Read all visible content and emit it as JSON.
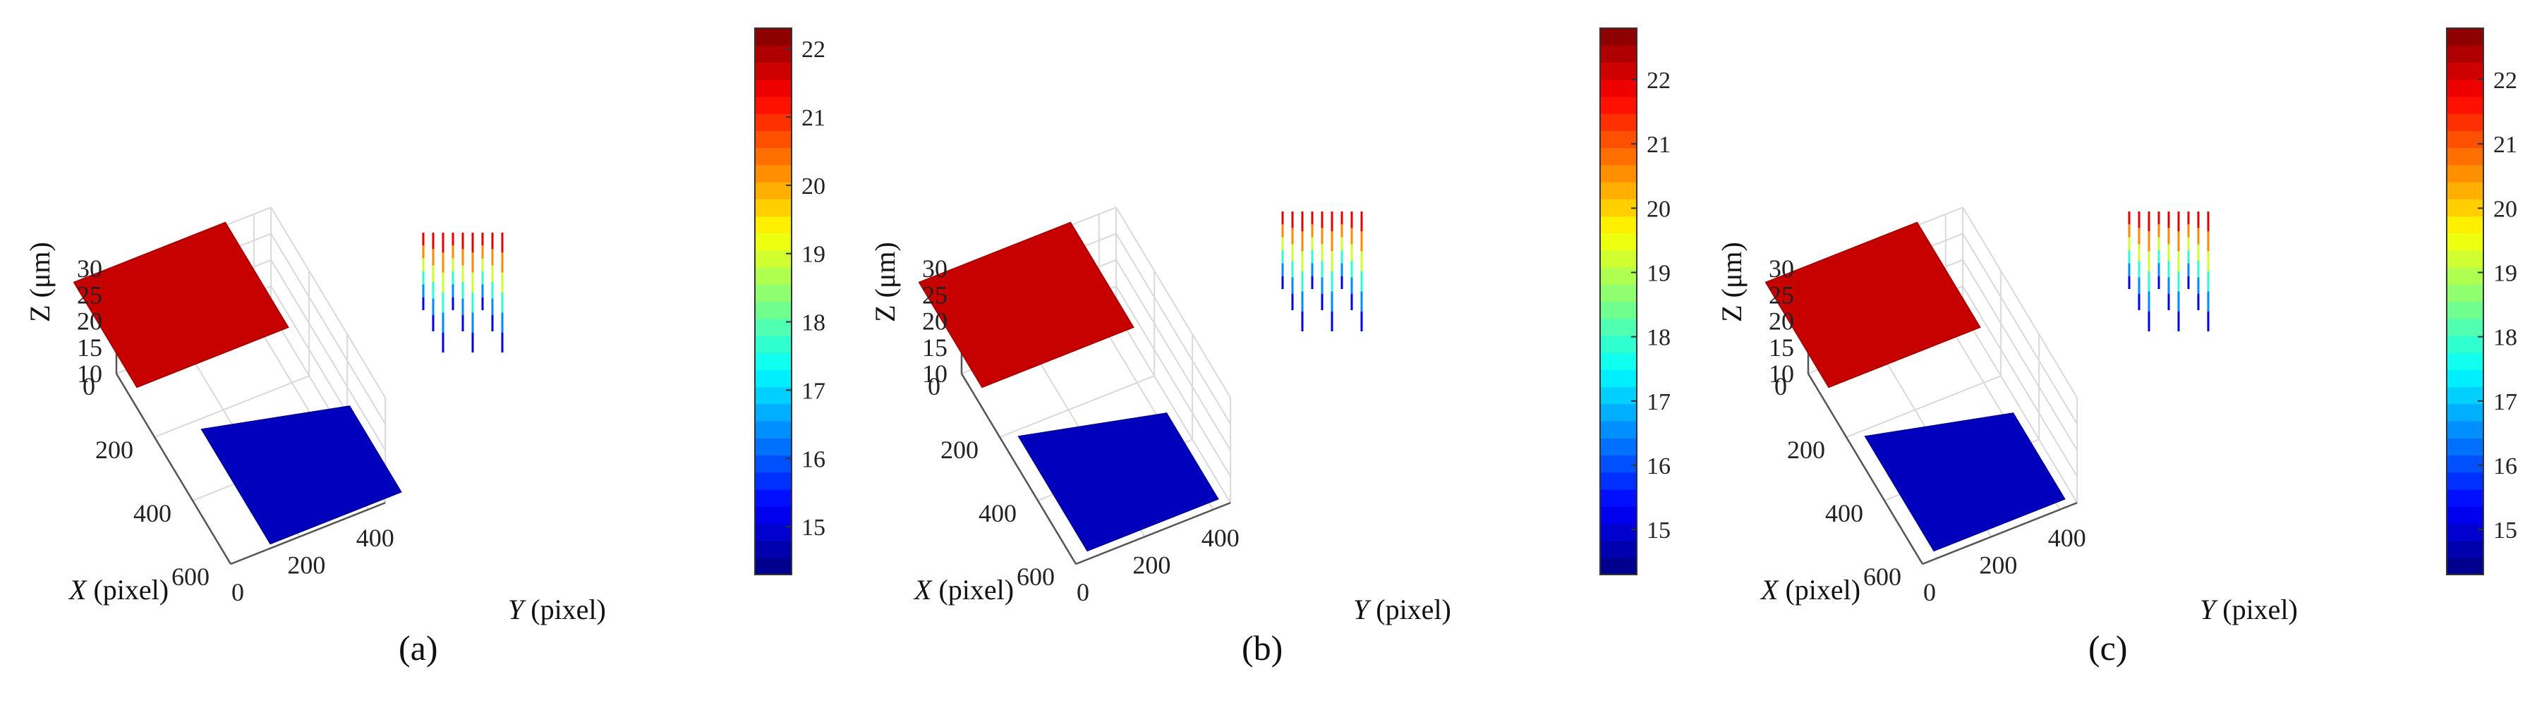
{
  "figure": {
    "panel_count": 3
  },
  "chart_data": [
    {
      "type": "surface3d",
      "caption": "(a)",
      "xlabel_var": "X",
      "xlabel_unit": "(pixel)",
      "ylabel_var": "Y",
      "ylabel_unit": "(pixel)",
      "zlabel": "Z (μm)",
      "x_ticks": [
        "0",
        "200",
        "400",
        "600"
      ],
      "y_ticks": [
        "0",
        "200",
        "400"
      ],
      "z_ticks": [
        "10",
        "15",
        "20",
        "25",
        "30"
      ],
      "xlim": [
        0,
        600
      ],
      "ylim": [
        0,
        450
      ],
      "zlim": [
        10,
        30
      ],
      "upper_level": 22,
      "lower_level": 14.8,
      "colorbar": {
        "min": 14.3,
        "max": 22.3,
        "ticks": [
          "15",
          "16",
          "17",
          "18",
          "19",
          "20",
          "21",
          "22"
        ]
      }
    },
    {
      "type": "surface3d",
      "caption": "(b)",
      "xlabel_var": "X",
      "xlabel_unit": "(pixel)",
      "ylabel_var": "Y",
      "ylabel_unit": "(pixel)",
      "zlabel": "Z (μm)",
      "x_ticks": [
        "0",
        "200",
        "400",
        "600"
      ],
      "y_ticks": [
        "0",
        "200",
        "400"
      ],
      "z_ticks": [
        "10",
        "15",
        "20",
        "25",
        "30"
      ],
      "xlim": [
        0,
        600
      ],
      "ylim": [
        0,
        450
      ],
      "zlim": [
        10,
        30
      ],
      "upper_level": 22,
      "lower_level": 14.8,
      "colorbar": {
        "min": 14.3,
        "max": 22.8,
        "ticks": [
          "15",
          "16",
          "17",
          "18",
          "19",
          "20",
          "21",
          "22"
        ]
      }
    },
    {
      "type": "surface3d",
      "caption": "(c)",
      "xlabel_var": "X",
      "xlabel_unit": "(pixel)",
      "ylabel_var": "Y",
      "ylabel_unit": "(pixel)",
      "zlabel": "Z (μm)",
      "x_ticks": [
        "0",
        "200",
        "400",
        "600"
      ],
      "y_ticks": [
        "0",
        "200",
        "400"
      ],
      "z_ticks": [
        "10",
        "15",
        "20",
        "25",
        "30"
      ],
      "xlim": [
        0,
        600
      ],
      "ylim": [
        0,
        450
      ],
      "zlim": [
        10,
        30
      ],
      "upper_level": 22,
      "lower_level": 14.8,
      "colorbar": {
        "min": 14.3,
        "max": 22.8,
        "ticks": [
          "15",
          "16",
          "17",
          "18",
          "19",
          "20",
          "21",
          "22"
        ]
      }
    }
  ]
}
